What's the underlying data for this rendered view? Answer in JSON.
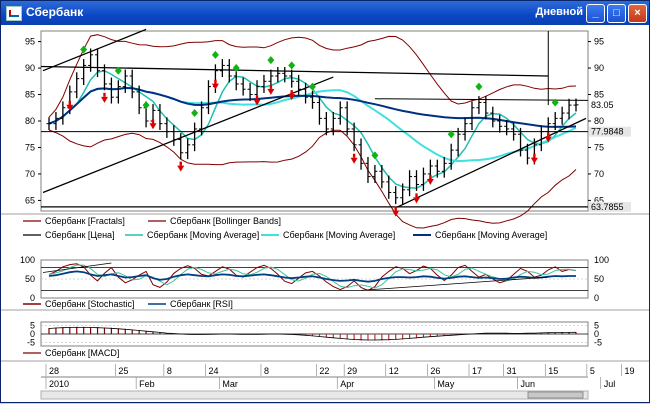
{
  "window": {
    "title": "Сбербанк",
    "period": "Дневной",
    "buttons": {
      "minimize": "_",
      "maximize": "□",
      "close": "×"
    }
  },
  "chart_data": [
    {
      "type": "line",
      "name": "price-panel",
      "ylim": [
        63,
        97
      ],
      "y_ticks": [
        65,
        70,
        75,
        80,
        85,
        90,
        95
      ],
      "right_labels": [
        {
          "value": 83.05,
          "label": "83.05",
          "bg": "#ffffff"
        },
        {
          "value": 77.9848,
          "label": "77.9848",
          "bg": "#e6e6e6"
        },
        {
          "value": 63.7855,
          "label": "63.7855",
          "bg": "#e6e6e6"
        }
      ],
      "close": [
        79.5,
        80.5,
        82.5,
        85.5,
        88.0,
        90.5,
        92.5,
        89.5,
        87.0,
        84.5,
        86.5,
        88.5,
        85.5,
        82.5,
        80.0,
        82.0,
        79.5,
        78.0,
        76.5,
        74.0,
        75.5,
        78.5,
        82.5,
        86.5,
        89.5,
        90.5,
        88.5,
        87.0,
        86.0,
        85.0,
        86.5,
        87.5,
        88.5,
        89.0,
        88.5,
        87.5,
        86.0,
        84.5,
        83.5,
        80.5,
        78.5,
        80.5,
        82.5,
        78.5,
        75.5,
        72.0,
        69.5,
        70.5,
        68.5,
        66.5,
        65.5,
        67.0,
        69.5,
        68.0,
        70.0,
        71.5,
        70.5,
        72.0,
        74.5,
        77.5,
        79.5,
        82.5,
        83.5,
        81.5,
        80.0,
        79.0,
        78.5,
        77.5,
        74.5,
        73.0,
        75.5,
        78.0,
        79.5,
        80.5,
        81.5,
        83.0,
        83.05
      ],
      "series": [
        {
          "name": "Сбербанк [Fractals]",
          "color": "#800000"
        },
        {
          "name": "Сбербанк [Bollinger Bands]",
          "color": "#800000"
        },
        {
          "name": "Сбербанк [Цена]",
          "color": "#000000"
        },
        {
          "name": "Сбербанк [Moving Average]",
          "color": "#20c0b0",
          "window": 5,
          "width": 1.5
        },
        {
          "name": "Сбербанк [Moving Average]",
          "color": "#40e0e0",
          "window": 20,
          "width": 2
        },
        {
          "name": "Сбербанк [Moving Average]",
          "color": "#003080",
          "window": 60,
          "width": 2
        }
      ],
      "up_fractals_x": [
        5,
        10,
        14,
        21,
        24,
        27,
        32,
        35,
        38,
        47,
        58,
        62,
        73
      ],
      "down_fractals_x": [
        3,
        8,
        15,
        19,
        24,
        30,
        32,
        35,
        44,
        50,
        53,
        55,
        70,
        72
      ]
    },
    {
      "type": "line",
      "name": "stochastic-rsi-panel",
      "ylim": [
        0,
        100
      ],
      "y_ticks": [
        0,
        50,
        100
      ],
      "series": [
        {
          "name": "Сбербанк [Stochastic]",
          "color": "#800000"
        },
        {
          "name": "Сбербанк [RSI]",
          "color": "#004080"
        }
      ],
      "stochastic": [
        62,
        70,
        82,
        88,
        90,
        82,
        60,
        45,
        65,
        80,
        55,
        40,
        48,
        60,
        70,
        35,
        28,
        42,
        65,
        78,
        85,
        78,
        62,
        58,
        70,
        82,
        76,
        60,
        55,
        68,
        80,
        86,
        78,
        62,
        44,
        38,
        52,
        66,
        70,
        58,
        42,
        30,
        22,
        30,
        45,
        28,
        20,
        30,
        55,
        70,
        82,
        78,
        64,
        72,
        84,
        78,
        60,
        46,
        60,
        80,
        86,
        70,
        55,
        62,
        50,
        40,
        46,
        62,
        78,
        70,
        55,
        60,
        74,
        82,
        70,
        75,
        72
      ],
      "rsi": [
        58,
        60,
        64,
        68,
        70,
        68,
        62,
        58,
        60,
        62,
        58,
        54,
        55,
        58,
        60,
        52,
        48,
        50,
        56,
        60,
        62,
        60,
        58,
        57,
        60,
        62,
        61,
        58,
        57,
        59,
        61,
        62,
        60,
        57,
        54,
        52,
        54,
        56,
        57,
        54,
        50,
        47,
        45,
        46,
        48,
        45,
        43,
        45,
        50,
        53,
        55,
        55,
        54,
        55,
        57,
        56,
        53,
        51,
        53,
        56,
        57,
        55,
        53,
        54,
        52,
        50,
        51,
        54,
        56,
        55,
        53,
        54,
        56,
        58,
        57,
        58,
        58
      ]
    },
    {
      "type": "bar",
      "name": "macd-panel",
      "ylim": [
        -7,
        7
      ],
      "y_ticks": [
        -5,
        0,
        5
      ],
      "series": [
        {
          "name": "Сбербанк [MACD]",
          "color": "#800000"
        }
      ],
      "hist": [
        3.5,
        3.8,
        4.0,
        4.1,
        4.2,
        4.2,
        4.1,
        4.0,
        3.8,
        3.6,
        3.3,
        3.0,
        2.6,
        2.2,
        1.8,
        1.4,
        1.0,
        0.6,
        0.3,
        0.0,
        -0.2,
        -0.3,
        -0.3,
        -0.2,
        -0.1,
        0.0,
        0.0,
        -0.1,
        -0.2,
        -0.2,
        -0.2,
        -0.1,
        0.0,
        0.0,
        -0.1,
        -0.3,
        -0.5,
        -0.8,
        -1.2,
        -1.6,
        -2.0,
        -2.4,
        -2.8,
        -3.2,
        -3.5,
        -3.7,
        -3.8,
        -3.8,
        -3.7,
        -3.6,
        -3.4,
        -3.1,
        -2.8,
        -2.4,
        -2.0,
        -1.7,
        -1.4,
        -1.1,
        -0.8,
        -0.5,
        -0.2,
        0.0,
        0.3,
        0.5,
        0.6,
        0.6,
        0.5,
        0.4,
        0.4,
        0.5,
        0.6,
        0.7,
        0.8,
        0.9,
        1.0,
        1.0,
        1.1
      ]
    }
  ],
  "x_axis": {
    "day_labels": [
      "28",
      "25",
      "8",
      "24",
      "8",
      "22",
      "29",
      "12",
      "26",
      "17",
      "31",
      "15",
      "5",
      "19"
    ],
    "day_label_bars": [
      0,
      10,
      17,
      23,
      31,
      39,
      43,
      49,
      55,
      61,
      66,
      72,
      78,
      83
    ],
    "month_labels": [
      "2010",
      "Feb",
      "Mar",
      "Apr",
      "May",
      "Jun",
      "Jul"
    ],
    "month_label_bars": [
      0,
      13,
      25,
      42,
      56,
      68,
      80
    ]
  }
}
